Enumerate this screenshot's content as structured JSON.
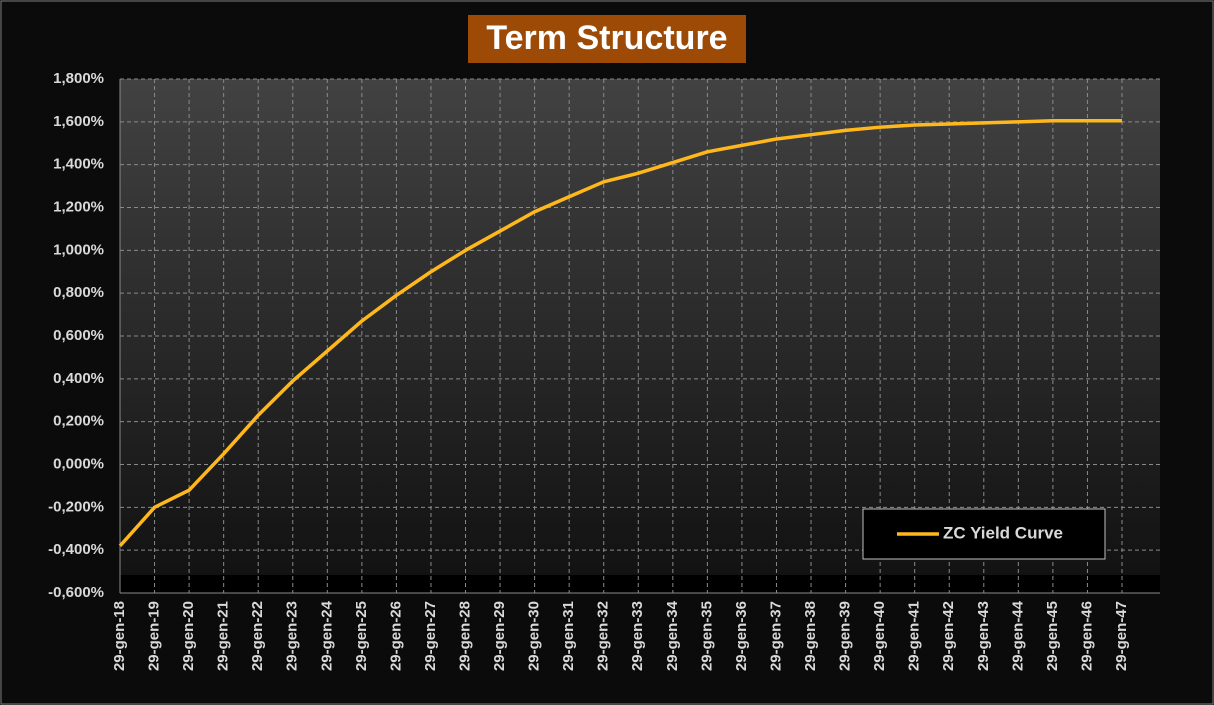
{
  "chart_data": {
    "type": "line",
    "title": "Term Structure",
    "x": [
      "29-gen-18",
      "29-gen-19",
      "29-gen-20",
      "29-gen-21",
      "29-gen-22",
      "29-gen-23",
      "29-gen-24",
      "29-gen-25",
      "29-gen-26",
      "29-gen-27",
      "29-gen-28",
      "29-gen-29",
      "29-gen-30",
      "29-gen-31",
      "29-gen-32",
      "29-gen-33",
      "29-gen-34",
      "29-gen-35",
      "29-gen-36",
      "29-gen-37",
      "29-gen-38",
      "29-gen-39",
      "29-gen-40",
      "29-gen-41",
      "29-gen-42",
      "29-gen-43",
      "29-gen-44",
      "29-gen-45",
      "29-gen-46",
      "29-gen-47"
    ],
    "series": [
      {
        "name": "ZC Yield Curve",
        "color": "#ffb81c",
        "values": [
          -0.38,
          -0.2,
          -0.12,
          0.05,
          0.23,
          0.39,
          0.53,
          0.67,
          0.79,
          0.9,
          1.0,
          1.09,
          1.18,
          1.25,
          1.32,
          1.36,
          1.41,
          1.46,
          1.49,
          1.52,
          1.54,
          1.56,
          1.575,
          1.585,
          1.59,
          1.595,
          1.6,
          1.605,
          1.605,
          1.605
        ]
      }
    ],
    "ylim": [
      -0.6,
      1.8
    ],
    "yticks": [
      {
        "value": -0.6,
        "label": "-0,600%"
      },
      {
        "value": -0.4,
        "label": "-0,400%"
      },
      {
        "value": -0.2,
        "label": "-0,200%"
      },
      {
        "value": 0,
        "label": "0,000%"
      },
      {
        "value": 0.2,
        "label": "0,200%"
      },
      {
        "value": 0.4,
        "label": "0,400%"
      },
      {
        "value": 0.6,
        "label": "0,600%"
      },
      {
        "value": 0.8,
        "label": "0,800%"
      },
      {
        "value": 1.0,
        "label": "1,000%"
      },
      {
        "value": 1.2,
        "label": "1,200%"
      },
      {
        "value": 1.4,
        "label": "1,400%"
      },
      {
        "value": 1.6,
        "label": "1,600%"
      },
      {
        "value": 1.8,
        "label": "1,800%"
      }
    ],
    "grid": true,
    "legend": "lower right"
  }
}
